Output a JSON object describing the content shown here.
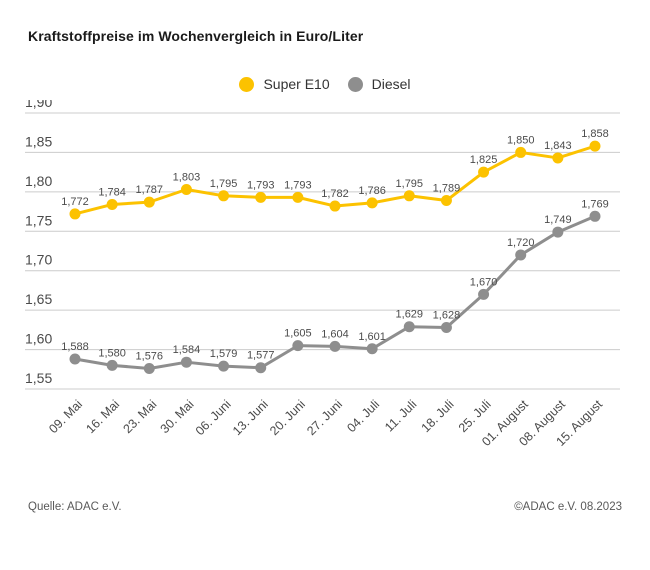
{
  "title": "Kraftstoffpreise im Wochenvergleich in Euro/Liter",
  "legend": [
    {
      "label": "Super E10",
      "color": "#fcc200"
    },
    {
      "label": "Diesel",
      "color": "#8e8e8e"
    }
  ],
  "footer": {
    "source": "Quelle: ADAC e.V.",
    "copyright": "©ADAC e.V. 08.2023"
  },
  "colors": {
    "super_e10": "#fcc200",
    "diesel": "#8e8e8e",
    "gridline": "#cccccc",
    "axis_text": "#4a4a4a",
    "value_label": "#4c4c4c"
  },
  "chart_data": {
    "type": "line",
    "title": "Kraftstoffpreise im Wochenvergleich in Euro/Liter",
    "xlabel": "",
    "ylabel": "Euro/Liter",
    "categories": [
      "09. Mai",
      "16. Mai",
      "23. Mai",
      "30. Mai",
      "06. Juni",
      "13. Juni",
      "20. Juni",
      "27. Juni",
      "04. Juli",
      "11. Juli",
      "18. Juli",
      "25. Juli",
      "01. August",
      "08. August",
      "15. August"
    ],
    "series": [
      {
        "name": "Super E10",
        "color": "#fcc200",
        "values": [
          1.772,
          1.784,
          1.787,
          1.803,
          1.795,
          1.793,
          1.793,
          1.782,
          1.786,
          1.795,
          1.789,
          1.825,
          1.85,
          1.843,
          1.858
        ]
      },
      {
        "name": "Diesel",
        "color": "#8e8e8e",
        "values": [
          1.588,
          1.58,
          1.576,
          1.584,
          1.579,
          1.577,
          1.605,
          1.604,
          1.601,
          1.629,
          1.628,
          1.67,
          1.72,
          1.749,
          1.769
        ]
      }
    ],
    "ylim": [
      1.55,
      1.9
    ],
    "ytick_step": 0.05,
    "grid": true,
    "legend_position": "top-center",
    "value_labels": true,
    "decimal_separator": ","
  }
}
